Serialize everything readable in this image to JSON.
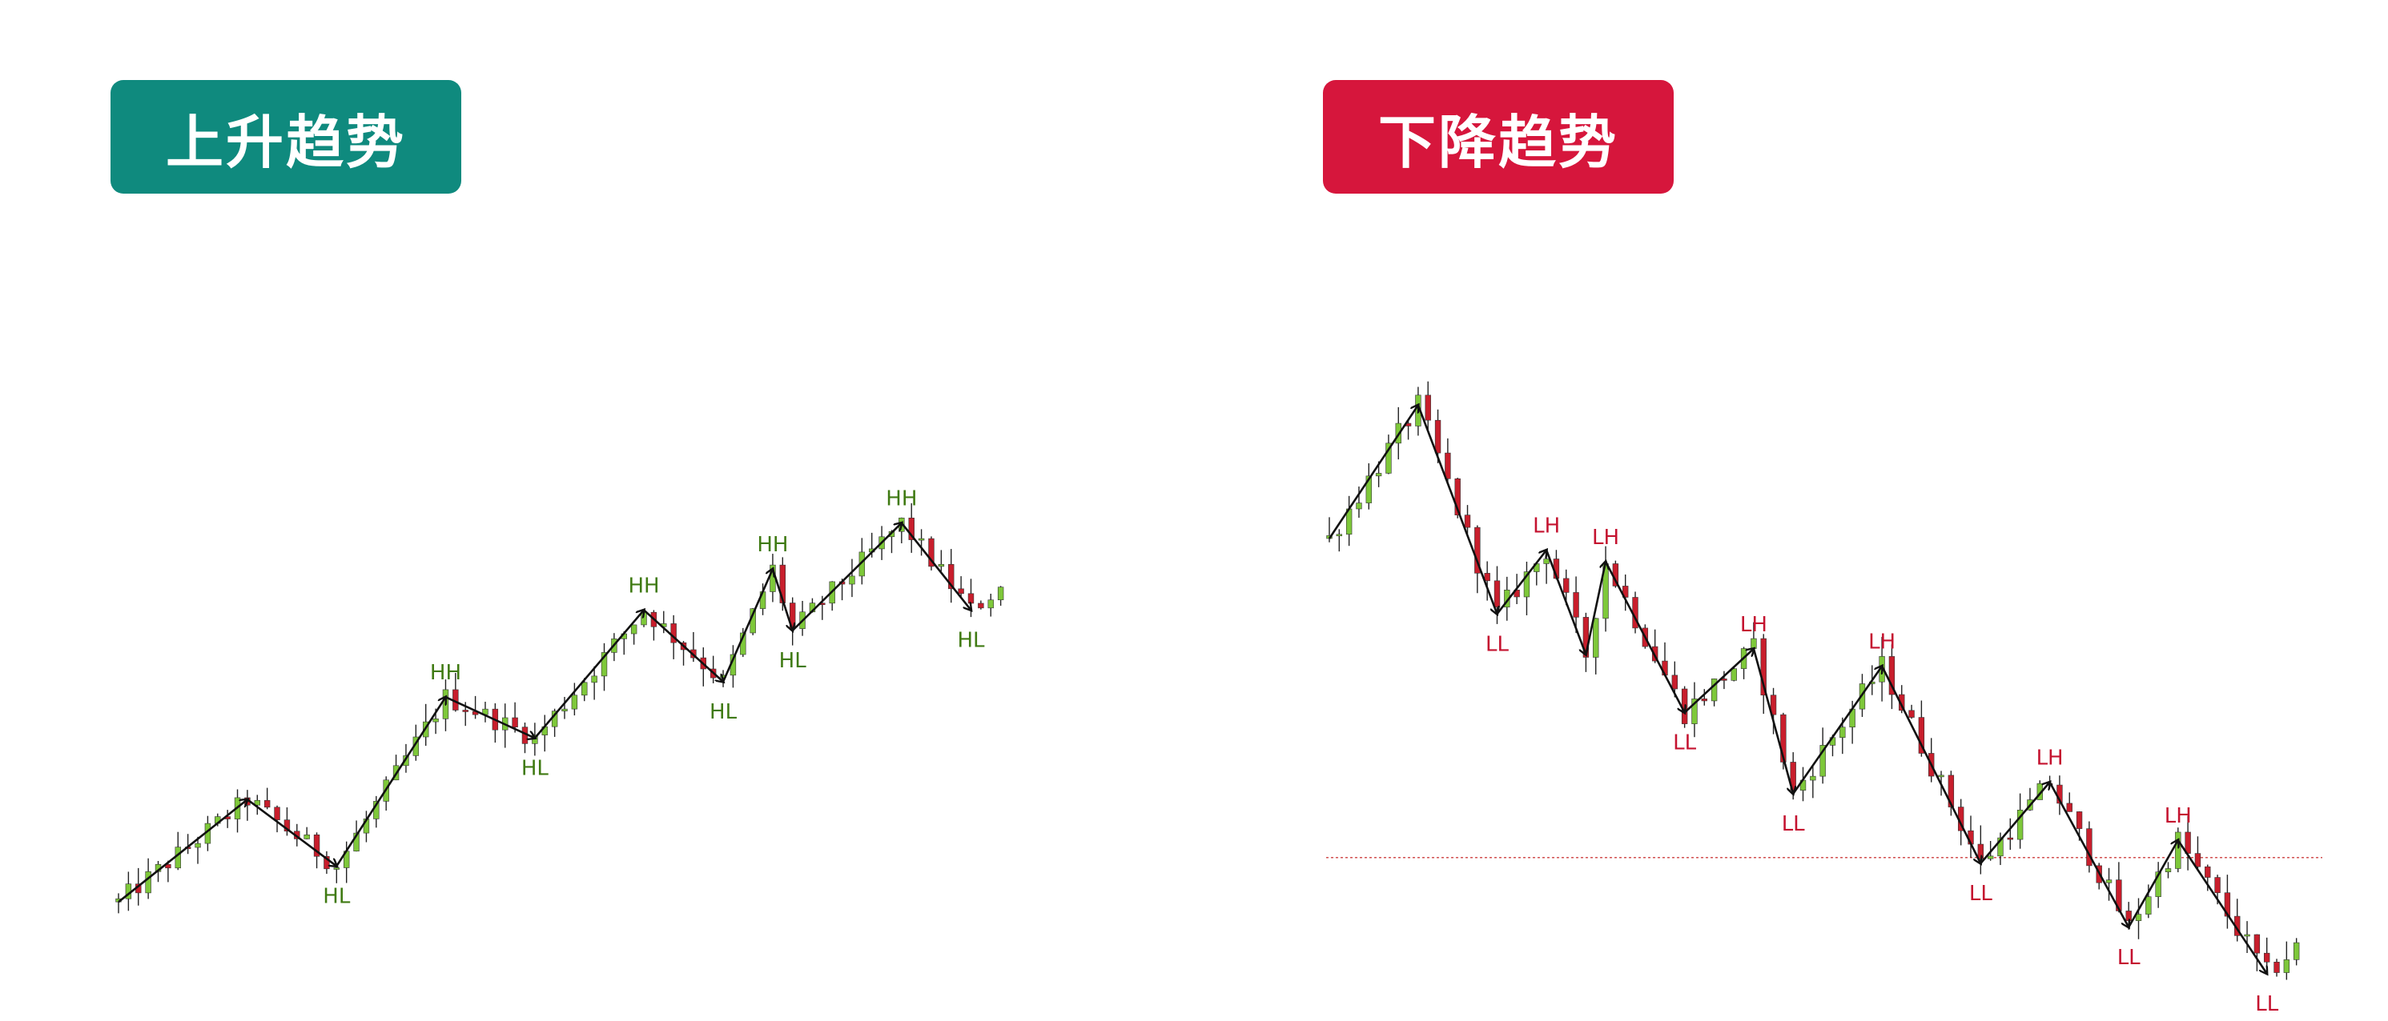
{
  "panels": {
    "uptrend": {
      "title": "上升趋势",
      "color": "#0f8a7e",
      "label_color": "#3f7a12"
    },
    "downtrend": {
      "title": "下降趋势",
      "color": "#d6163c",
      "label_color": "#c4122f"
    }
  },
  "candle_colors": {
    "bull": "#7ec83a",
    "bear": "#c81e2c",
    "wick": "#222222"
  },
  "chart_data": [
    {
      "type": "candlestick",
      "panel": "uptrend",
      "title": "上升趋势",
      "ylim": [
        0,
        100
      ],
      "grid": false,
      "zigzag": [
        {
          "x": 0,
          "y": 2
        },
        {
          "x": 13,
          "y": 22
        },
        {
          "x": 22,
          "y": 9
        },
        {
          "x": 33,
          "y": 42
        },
        {
          "x": 42,
          "y": 34
        },
        {
          "x": 53,
          "y": 59
        },
        {
          "x": 61,
          "y": 45
        },
        {
          "x": 66,
          "y": 67
        },
        {
          "x": 68,
          "y": 55
        },
        {
          "x": 79,
          "y": 76
        },
        {
          "x": 86,
          "y": 59
        }
      ],
      "swing_labels": [
        {
          "text": "HL",
          "x": 22,
          "y": 9,
          "pos": "below"
        },
        {
          "text": "HH",
          "x": 33,
          "y": 42,
          "pos": "above"
        },
        {
          "text": "HL",
          "x": 42,
          "y": 34,
          "pos": "below"
        },
        {
          "text": "HH",
          "x": 53,
          "y": 59,
          "pos": "above"
        },
        {
          "text": "HL",
          "x": 61,
          "y": 45,
          "pos": "below"
        },
        {
          "text": "HH",
          "x": 66,
          "y": 67,
          "pos": "above"
        },
        {
          "text": "HL",
          "x": 68,
          "y": 55,
          "pos": "below"
        },
        {
          "text": "HH",
          "x": 79,
          "y": 76,
          "pos": "above"
        },
        {
          "text": "HL",
          "x": 86,
          "y": 59,
          "pos": "below"
        }
      ]
    },
    {
      "type": "candlestick",
      "panel": "downtrend",
      "title": "下降趋势",
      "ylim": [
        0,
        100
      ],
      "grid": false,
      "dotted_reference_level": 17,
      "zigzag": [
        {
          "x": 0,
          "y": 72
        },
        {
          "x": 9,
          "y": 95
        },
        {
          "x": 17,
          "y": 59
        },
        {
          "x": 22,
          "y": 70
        },
        {
          "x": 26,
          "y": 52
        },
        {
          "x": 28,
          "y": 68
        },
        {
          "x": 36,
          "y": 42
        },
        {
          "x": 43,
          "y": 53
        },
        {
          "x": 47,
          "y": 28
        },
        {
          "x": 56,
          "y": 50
        },
        {
          "x": 66,
          "y": 16
        },
        {
          "x": 73,
          "y": 30
        },
        {
          "x": 81,
          "y": 5
        },
        {
          "x": 86,
          "y": 20
        },
        {
          "x": 95,
          "y": -3
        }
      ],
      "swing_labels": [
        {
          "text": "LL",
          "x": 17,
          "y": 59,
          "pos": "below"
        },
        {
          "text": "LH",
          "x": 22,
          "y": 70,
          "pos": "above"
        },
        {
          "text": "LH",
          "x": 28,
          "y": 68,
          "pos": "above"
        },
        {
          "text": "LL",
          "x": 36,
          "y": 42,
          "pos": "below"
        },
        {
          "text": "LH",
          "x": 43,
          "y": 53,
          "pos": "above"
        },
        {
          "text": "LL",
          "x": 47,
          "y": 28,
          "pos": "below"
        },
        {
          "text": "LH",
          "x": 56,
          "y": 50,
          "pos": "above"
        },
        {
          "text": "LL",
          "x": 66,
          "y": 16,
          "pos": "below"
        },
        {
          "text": "LH",
          "x": 73,
          "y": 30,
          "pos": "above"
        },
        {
          "text": "LL",
          "x": 81,
          "y": 5,
          "pos": "below"
        },
        {
          "text": "LH",
          "x": 86,
          "y": 20,
          "pos": "above"
        },
        {
          "text": "LL",
          "x": 95,
          "y": -3,
          "pos": "below"
        }
      ]
    }
  ]
}
